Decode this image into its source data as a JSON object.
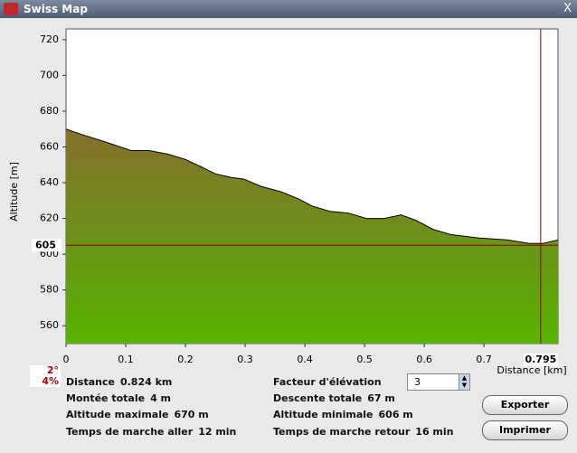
{
  "window": {
    "title": "Swiss Map"
  },
  "chart_data": {
    "type": "area",
    "y_label": "Altitude [m]",
    "x_label": "Distance [km]",
    "x": [
      0,
      0.026,
      0.064,
      0.109,
      0.139,
      0.17,
      0.2,
      0.226,
      0.25,
      0.276,
      0.298,
      0.326,
      0.359,
      0.389,
      0.412,
      0.442,
      0.473,
      0.503,
      0.533,
      0.561,
      0.586,
      0.614,
      0.644,
      0.692,
      0.738,
      0.776,
      0.798,
      0.824
    ],
    "values": [
      670,
      667,
      663,
      658,
      658,
      656,
      653,
      649,
      645,
      643,
      642,
      638,
      635,
      631,
      627,
      624,
      623,
      620,
      620,
      622,
      619,
      614,
      611,
      609,
      608,
      606,
      606,
      608
    ],
    "xlim": [
      0,
      0.824
    ],
    "ylim": [
      550,
      726
    ],
    "xticks": [
      0,
      0.1,
      0.2,
      0.3,
      0.4,
      0.5,
      0.6,
      0.7
    ],
    "yticks": [
      560,
      580,
      600,
      620,
      640,
      660,
      680,
      700,
      720
    ],
    "cursor": {
      "x": 0.795,
      "y": 605
    },
    "line_color": "#000000",
    "cursor_color": "#8b0000"
  },
  "slope": {
    "degrees": "2°",
    "percent": "4%"
  },
  "info": [
    {
      "label": "Distance",
      "value": "0.824 km"
    },
    {
      "label": "Montée totale",
      "value": "4 m"
    },
    {
      "label": "Altitude maximale",
      "value": "670 m"
    },
    {
      "label": "Temps de marche aller",
      "value": "12 min"
    },
    {
      "label": "Descente totale",
      "value": "67 m"
    },
    {
      "label": "Altitude minimale",
      "value": "606 m"
    },
    {
      "label": "Temps de marche retour",
      "value": "16 min"
    }
  ],
  "elevation_factor": {
    "label": "Facteur d'élévation",
    "value": "3"
  },
  "buttons": [
    "Exporter",
    "Imprimer"
  ]
}
